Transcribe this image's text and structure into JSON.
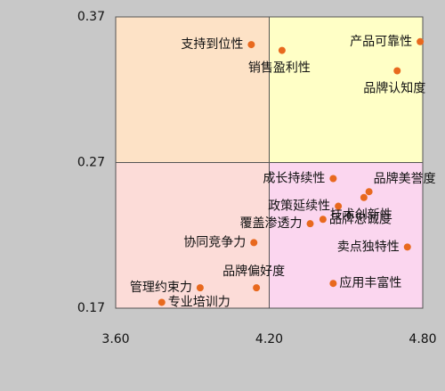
{
  "chart_data": {
    "type": "scatter",
    "title": "",
    "xlabel": "",
    "ylabel": "",
    "xlim": [
      3.6,
      4.8
    ],
    "ylim": [
      0.17,
      0.37
    ],
    "x_ticks": [
      "3.60",
      "4.20",
      "4.80"
    ],
    "y_ticks": [
      "0.17",
      "0.27",
      "0.37"
    ],
    "x_split": 4.2,
    "y_split": 0.27,
    "quadrant_colors": {
      "top_left": "#fde2c6",
      "top_right": "#ffffc6",
      "bottom_left": "#fcdcd8",
      "bottom_right": "#fbd6ef"
    },
    "point_color": "#e8691e",
    "points": [
      {
        "label": "支持到位性",
        "x": 4.13,
        "y": 0.351,
        "label_pos": "left"
      },
      {
        "label": "销售盈利性",
        "x": 4.25,
        "y": 0.347,
        "label_pos": "below"
      },
      {
        "label": "产品可靠性",
        "x": 4.79,
        "y": 0.353,
        "label_pos": "left"
      },
      {
        "label": "品牌认知度",
        "x": 4.7,
        "y": 0.333,
        "label_pos": "below"
      },
      {
        "label": "成长持续性",
        "x": 4.45,
        "y": 0.259,
        "label_pos": "left"
      },
      {
        "label": "品牌美誉度",
        "x": 4.59,
        "y": 0.25,
        "label_pos": "right-up"
      },
      {
        "label": "技术创新性",
        "x": 4.57,
        "y": 0.246,
        "label_pos": "below"
      },
      {
        "label": "政策延续性",
        "x": 4.47,
        "y": 0.24,
        "label_pos": "left"
      },
      {
        "label": "覆盖渗透力",
        "x": 4.36,
        "y": 0.228,
        "label_pos": "left"
      },
      {
        "label": "品牌忠诚度",
        "x": 4.41,
        "y": 0.231,
        "label_pos": "right"
      },
      {
        "label": "协同竞争力",
        "x": 4.14,
        "y": 0.215,
        "label_pos": "left"
      },
      {
        "label": "卖点独特性",
        "x": 4.74,
        "y": 0.212,
        "label_pos": "left"
      },
      {
        "label": "品牌偏好度",
        "x": 4.15,
        "y": 0.184,
        "label_pos": "above"
      },
      {
        "label": "应用丰富性",
        "x": 4.45,
        "y": 0.187,
        "label_pos": "right"
      },
      {
        "label": "管理约束力",
        "x": 3.93,
        "y": 0.184,
        "label_pos": "left"
      },
      {
        "label": "专业培训力",
        "x": 3.78,
        "y": 0.174,
        "label_pos": "right"
      }
    ]
  }
}
